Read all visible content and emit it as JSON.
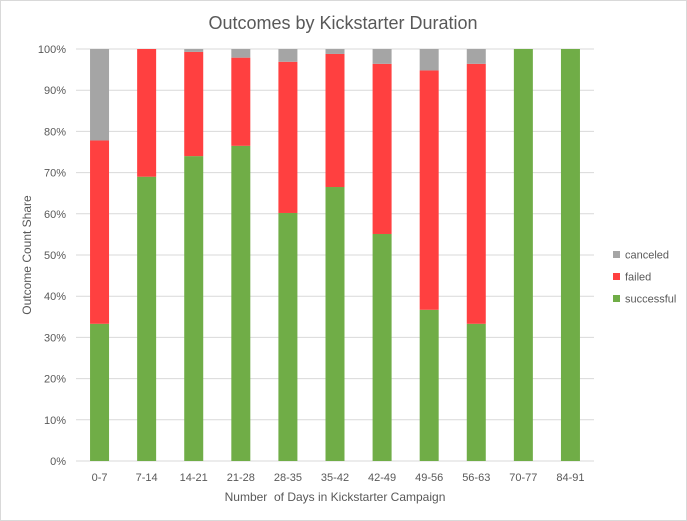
{
  "chart_data": {
    "type": "bar",
    "stacked": true,
    "title": "Outcomes by Kickstarter Duration",
    "xlabel": "Number  of Days in Kickstarter Campaign",
    "ylabel": "Outcome Count Share",
    "ylim": [
      0,
      100
    ],
    "yticks": [
      "0%",
      "10%",
      "20%",
      "30%",
      "40%",
      "50%",
      "60%",
      "70%",
      "80%",
      "90%",
      "100%"
    ],
    "categories": [
      "0-7",
      "7-14",
      "14-21",
      "21-28",
      "28-35",
      "35-42",
      "42-49",
      "49-56",
      "56-63",
      "70-77",
      "84-91"
    ],
    "series": [
      {
        "name": "successful",
        "color": "#70ad47",
        "values": [
          33.3,
          69.0,
          74.0,
          76.5,
          60.2,
          66.5,
          55.1,
          36.7,
          33.3,
          100,
          100
        ]
      },
      {
        "name": "failed",
        "color": "#ff4040",
        "values": [
          44.5,
          31.0,
          25.3,
          21.4,
          36.7,
          32.3,
          41.3,
          58.1,
          63.1,
          0,
          0
        ]
      },
      {
        "name": "canceled",
        "color": "#a5a5a5",
        "values": [
          22.2,
          0,
          0.7,
          2.1,
          3.1,
          1.2,
          3.6,
          5.2,
          3.6,
          0,
          0
        ]
      }
    ],
    "legend_order": [
      "canceled",
      "failed",
      "successful"
    ],
    "legend_position": "right",
    "grid": true
  }
}
